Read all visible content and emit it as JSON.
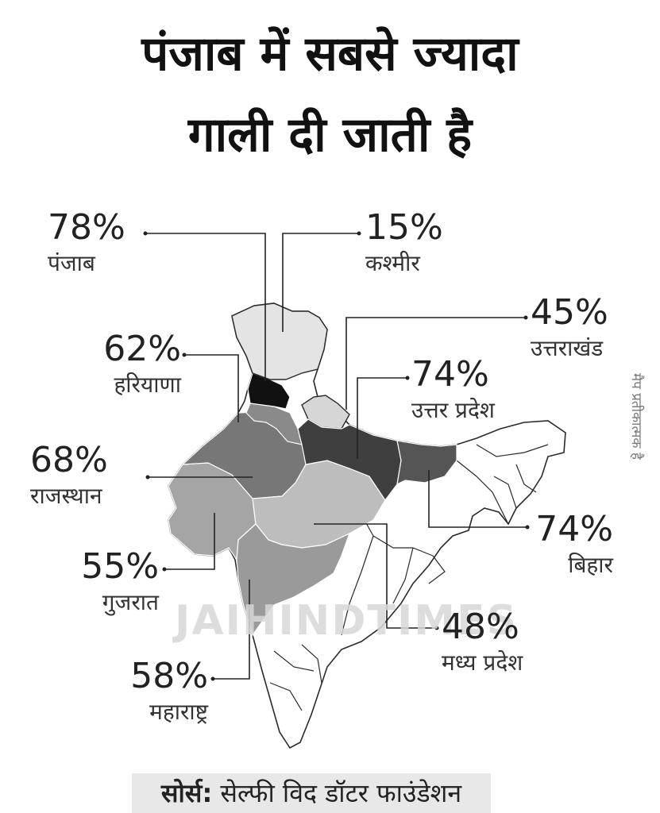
{
  "title": {
    "line1": "पंजाब में सबसे ज्यादा",
    "line2": "गाली दी जाती है"
  },
  "states": [
    {
      "key": "punjab",
      "percent": "78%",
      "name": "पंजाब",
      "fill": "#111111"
    },
    {
      "key": "kashmir",
      "percent": "15%",
      "name": "कश्मीर",
      "fill": "#e4e4e4"
    },
    {
      "key": "uttarakhand",
      "percent": "45%",
      "name": "उत्तराखंड",
      "fill": "#d6d6d6"
    },
    {
      "key": "haryana",
      "percent": "62%",
      "name": "हरियाणा",
      "fill": "#8a8a8a"
    },
    {
      "key": "uttar_pradesh",
      "percent": "74%",
      "name": "उत्तर प्रदेश",
      "fill": "#3f3f3f"
    },
    {
      "key": "rajasthan",
      "percent": "68%",
      "name": "राजस्थान",
      "fill": "#777777"
    },
    {
      "key": "bihar",
      "percent": "74%",
      "name": "बिहार",
      "fill": "#555555"
    },
    {
      "key": "gujarat",
      "percent": "55%",
      "name": "गुजरात",
      "fill": "#a5a5a5"
    },
    {
      "key": "madhya_pradesh",
      "percent": "48%",
      "name": "मध्य प्रदेश",
      "fill": "#bdbdbd"
    },
    {
      "key": "maharashtra",
      "percent": "58%",
      "name": "महाराष्ट्र",
      "fill": "#9a9a9a"
    }
  ],
  "note": "मैप प्रतीकात्मक है",
  "watermark": "JAIHINDTIMES",
  "source": {
    "label": "सोर्स:",
    "text": " सेल्फी विद डॉटर फाउंडेशन"
  }
}
